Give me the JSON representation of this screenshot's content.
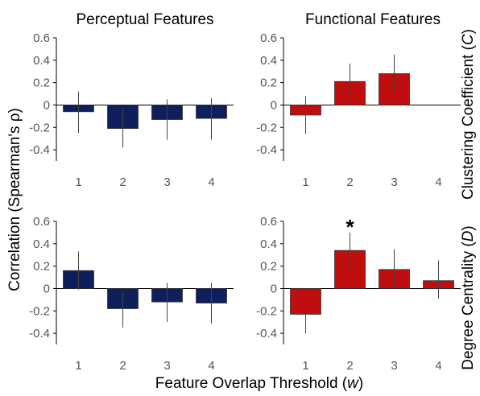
{
  "chart_data": {
    "type": "bar",
    "xlabel": "Feature Overlap Threshold",
    "xlabel_var": "w",
    "ylabel": "Correlation (Spearman's ρ)",
    "column_titles": [
      "Perceptual Features",
      "Functional Features"
    ],
    "row_labels": [
      {
        "text": "Clustering Coefficient",
        "var": "C"
      },
      {
        "text": "Degree Centrality",
        "var": "D"
      }
    ],
    "colors": {
      "perceptual": "#0f1f5c",
      "functional": "#c00d0d",
      "errorbar": "#444444"
    },
    "grid": false,
    "ylim": [
      -0.5,
      0.6
    ],
    "yticks": [
      "0.6",
      "0.4",
      "0.2",
      "0",
      "-0.2",
      "-0.4"
    ],
    "categories": [
      "1",
      "2",
      "3",
      "4"
    ],
    "panels": [
      {
        "column": "Perceptual Features",
        "row": "Clustering Coefficient",
        "values": [
          -0.06,
          -0.21,
          -0.13,
          -0.12
        ],
        "err_low": [
          -0.25,
          -0.38,
          -0.31,
          -0.31
        ],
        "err_high": [
          0.12,
          -0.02,
          0.05,
          0.06
        ],
        "annotations": []
      },
      {
        "column": "Functional Features",
        "row": "Clustering Coefficient",
        "values": [
          -0.09,
          0.21,
          0.28,
          null
        ],
        "err_low": [
          -0.26,
          0.04,
          0.12,
          null
        ],
        "err_high": [
          0.08,
          0.37,
          0.45,
          null
        ],
        "annotations": []
      },
      {
        "column": "Perceptual Features",
        "row": "Degree Centrality",
        "values": [
          0.16,
          -0.18,
          -0.12,
          -0.13
        ],
        "err_low": [
          -0.01,
          -0.35,
          -0.3,
          -0.31
        ],
        "err_high": [
          0.33,
          -0.02,
          0.05,
          0.05
        ],
        "annotations": []
      },
      {
        "column": "Functional Features",
        "row": "Degree Centrality",
        "values": [
          -0.23,
          0.34,
          0.17,
          0.07
        ],
        "err_low": [
          -0.4,
          0.17,
          0.0,
          -0.09
        ],
        "err_high": [
          -0.06,
          0.5,
          0.35,
          0.25
        ],
        "annotations": [
          {
            "category": "2",
            "text": "*"
          }
        ]
      }
    ]
  }
}
